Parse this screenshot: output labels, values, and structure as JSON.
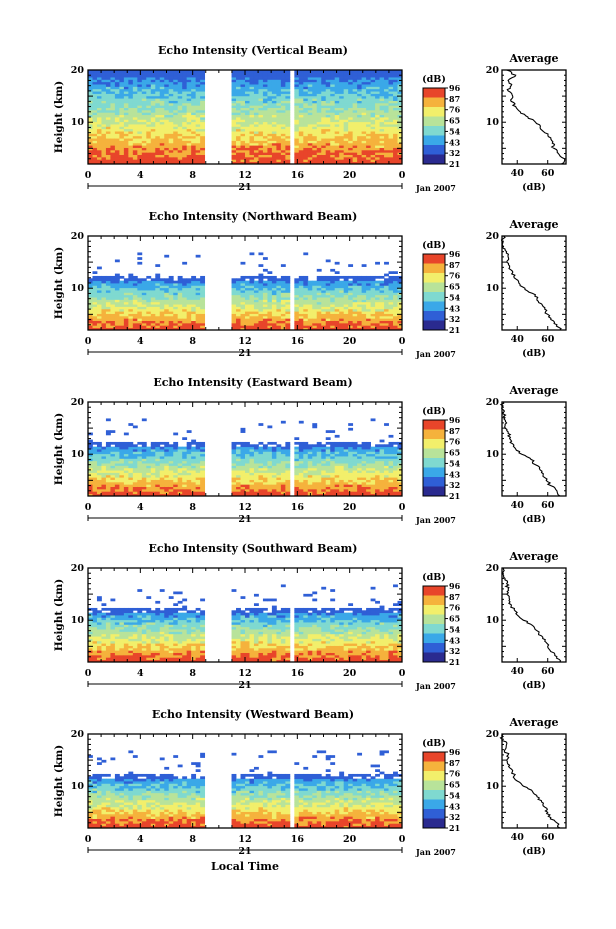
{
  "chart_data": [
    {
      "type": "heatmap",
      "title": "Echo Intensity (Vertical Beam)",
      "ylabel": "Height (km)",
      "ylim": [
        2,
        20
      ],
      "yticks": [
        10,
        20
      ],
      "xticks": [
        "0",
        "4",
        "8",
        "12",
        "16",
        "20",
        "0"
      ],
      "xlim": [
        0,
        24
      ],
      "day_label": "21",
      "date_label": "Jan 2007",
      "data_gaps": [
        [
          9,
          11
        ],
        [
          15.3,
          15.8
        ]
      ],
      "colorbar": {
        "unit": "(dB)",
        "ticks": [
          "96",
          "87",
          "76",
          "65",
          "54",
          "43",
          "32",
          "21"
        ]
      },
      "profile": {
        "title": "Average",
        "xlabel": "(dB)",
        "xticks": [
          "40",
          "60"
        ],
        "xlim": [
          30,
          72
        ],
        "ylim": [
          2,
          20
        ],
        "yticks": [
          "10",
          "20"
        ],
        "heights": [
          20,
          19,
          18,
          17,
          16,
          15,
          14,
          13,
          12,
          11,
          10,
          9,
          8,
          7,
          6,
          5,
          4,
          3,
          2
        ],
        "values": [
          33,
          39,
          34,
          36,
          34,
          37,
          36,
          39,
          42,
          47,
          52,
          55,
          58,
          62,
          63,
          64,
          67,
          71,
          69
        ]
      }
    },
    {
      "type": "heatmap",
      "title": "Echo Intensity (Northward Beam)",
      "ylabel": "Height (km)",
      "ylim": [
        2,
        20
      ],
      "yticks": [
        10,
        20
      ],
      "xticks": [
        "0",
        "4",
        "8",
        "12",
        "16",
        "20",
        "0"
      ],
      "xlim": [
        0,
        24
      ],
      "day_label": "21",
      "date_label": "Jan 2007",
      "data_gaps": [
        [
          9,
          11
        ],
        [
          15.3,
          15.8
        ]
      ],
      "colorbar": {
        "unit": "(dB)",
        "ticks": [
          "96",
          "87",
          "76",
          "65",
          "54",
          "43",
          "32",
          "21"
        ]
      },
      "profile": {
        "title": "Average",
        "xlabel": "(dB)",
        "xticks": [
          "40",
          "60"
        ],
        "xlim": [
          30,
          72
        ],
        "ylim": [
          2,
          20
        ],
        "yticks": [
          "10",
          "20"
        ],
        "heights": [
          20,
          19,
          18,
          17,
          16,
          15,
          14,
          13,
          12,
          11,
          10,
          9,
          8,
          7,
          6,
          5,
          4,
          3,
          2
        ],
        "values": [
          31,
          30,
          31,
          33,
          34,
          33,
          35,
          37,
          38,
          41,
          45,
          50,
          53,
          56,
          58,
          60,
          62,
          66,
          68
        ]
      }
    },
    {
      "type": "heatmap",
      "title": "Echo Intensity (Eastward Beam)",
      "ylabel": "Height (km)",
      "ylim": [
        2,
        20
      ],
      "yticks": [
        10,
        20
      ],
      "xticks": [
        "0",
        "4",
        "8",
        "12",
        "16",
        "20",
        "0"
      ],
      "xlim": [
        0,
        24
      ],
      "day_label": "21",
      "date_label": "Jan 2007",
      "data_gaps": [
        [
          9,
          11
        ],
        [
          15.3,
          15.8
        ]
      ],
      "colorbar": {
        "unit": "(dB)",
        "ticks": [
          "96",
          "87",
          "76",
          "65",
          "54",
          "43",
          "32",
          "21"
        ]
      },
      "profile": {
        "title": "Average",
        "xlabel": "(dB)",
        "xticks": [
          "40",
          "60"
        ],
        "xlim": [
          30,
          72
        ],
        "ylim": [
          2,
          20
        ],
        "yticks": [
          "10",
          "20"
        ],
        "heights": [
          20,
          19,
          18,
          17,
          16,
          15,
          14,
          13,
          12,
          11,
          10,
          9,
          8,
          7,
          6,
          5,
          4,
          3,
          2
        ],
        "values": [
          31,
          30,
          31,
          32,
          33,
          32,
          34,
          35,
          37,
          39,
          43,
          49,
          52,
          55,
          57,
          59,
          62,
          66,
          68
        ]
      }
    },
    {
      "type": "heatmap",
      "title": "Echo Intensity (Southward Beam)",
      "ylabel": "Height (km)",
      "ylim": [
        2,
        20
      ],
      "yticks": [
        10,
        20
      ],
      "xticks": [
        "0",
        "4",
        "8",
        "12",
        "16",
        "20",
        "0"
      ],
      "xlim": [
        0,
        24
      ],
      "day_label": "21",
      "date_label": "Jan 2007",
      "data_gaps": [
        [
          9,
          11
        ],
        [
          15.3,
          15.8
        ]
      ],
      "colorbar": {
        "unit": "(dB)",
        "ticks": [
          "96",
          "87",
          "76",
          "65",
          "54",
          "43",
          "32",
          "21"
        ]
      },
      "profile": {
        "title": "Average",
        "xlabel": "(dB)",
        "xticks": [
          "40",
          "60"
        ],
        "xlim": [
          30,
          72
        ],
        "ylim": [
          2,
          20
        ],
        "yticks": [
          "10",
          "20"
        ],
        "heights": [
          20,
          19,
          18,
          17,
          16,
          15,
          14,
          13,
          12,
          11,
          10,
          9,
          8,
          7,
          6,
          5,
          4,
          3,
          2
        ],
        "values": [
          31,
          30,
          32,
          33,
          34,
          33,
          35,
          36,
          38,
          40,
          44,
          50,
          53,
          56,
          58,
          60,
          62,
          66,
          68
        ]
      }
    },
    {
      "type": "heatmap",
      "title": "Echo Intensity (Westward Beam)",
      "ylabel": "Height (km)",
      "ylim": [
        2,
        20
      ],
      "yticks": [
        10,
        20
      ],
      "xticks": [
        "0",
        "4",
        "8",
        "12",
        "16",
        "20",
        "0"
      ],
      "xlim": [
        0,
        24
      ],
      "day_label": "21",
      "date_label": "Jan 2007",
      "data_gaps": [
        [
          9,
          11
        ],
        [
          15.3,
          15.8
        ]
      ],
      "colorbar": {
        "unit": "(dB)",
        "ticks": [
          "96",
          "87",
          "76",
          "65",
          "54",
          "43",
          "32",
          "21"
        ]
      },
      "profile": {
        "title": "Average",
        "xlabel": "(dB)",
        "xticks": [
          "40",
          "60"
        ],
        "xlim": [
          30,
          72
        ],
        "ylim": [
          2,
          20
        ],
        "yticks": [
          "10",
          "20"
        ],
        "heights": [
          20,
          19,
          18,
          17,
          16,
          15,
          14,
          13,
          12,
          11,
          10,
          9,
          8,
          7,
          6,
          5,
          4,
          3,
          2
        ],
        "values": [
          31,
          30,
          33,
          32,
          34,
          33,
          35,
          37,
          38,
          40,
          44,
          50,
          53,
          56,
          58,
          60,
          62,
          66,
          68
        ]
      }
    }
  ],
  "xlabel": "Local Time",
  "colorscale": [
    "#2a2a8f",
    "#2f5fd6",
    "#3aa8e8",
    "#7fd9d0",
    "#b8e39a",
    "#f2ef6b",
    "#f5b23c",
    "#e8452a"
  ]
}
